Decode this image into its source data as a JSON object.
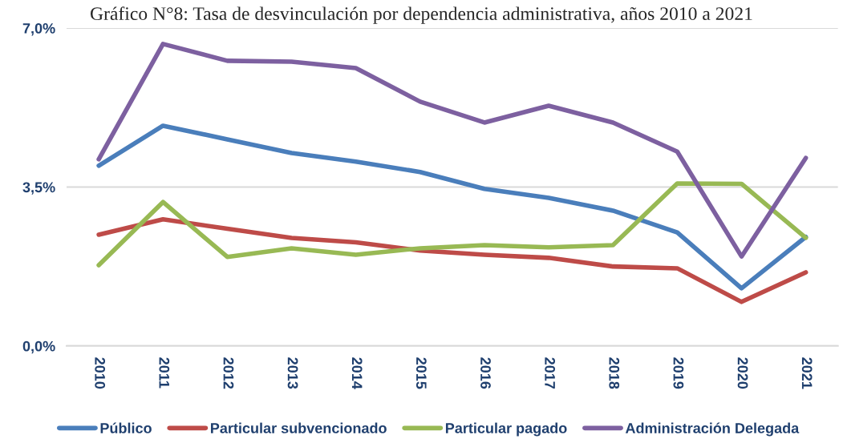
{
  "chart_data": {
    "type": "line",
    "title": "Gráfico N°8: Tasa de desvinculación por dependencia administrativa, años 2010 a 2021",
    "categories": [
      "2010",
      "2011",
      "2012",
      "2013",
      "2014",
      "2015",
      "2016",
      "2017",
      "2018",
      "2019",
      "2020",
      "2021"
    ],
    "series": [
      {
        "name": "Público",
        "color": "#4a7ebb",
        "values": [
          3.97,
          4.85,
          4.55,
          4.25,
          4.06,
          3.83,
          3.46,
          3.26,
          2.98,
          2.5,
          1.27,
          2.4
        ]
      },
      {
        "name": "Particular subvencionado",
        "color": "#be4b48",
        "values": [
          2.45,
          2.79,
          2.58,
          2.38,
          2.28,
          2.1,
          2.01,
          1.94,
          1.75,
          1.71,
          0.97,
          1.62
        ]
      },
      {
        "name": "Particular pagado",
        "color": "#98b954",
        "values": [
          1.78,
          3.17,
          1.96,
          2.15,
          2.01,
          2.15,
          2.22,
          2.17,
          2.22,
          3.58,
          3.57,
          2.38
        ]
      },
      {
        "name": "Administración Delegada",
        "color": "#7d60a0",
        "values": [
          4.11,
          6.65,
          6.28,
          6.26,
          6.12,
          5.38,
          4.92,
          5.29,
          4.92,
          4.28,
          1.97,
          4.14
        ]
      }
    ],
    "ylim": [
      0,
      7
    ],
    "yticks": [
      {
        "value": 0,
        "label": "0,0%"
      },
      {
        "value": 3.5,
        "label": "3,5%"
      },
      {
        "value": 7,
        "label": "7,0%"
      }
    ],
    "grid": "y",
    "legend": "bottom",
    "marker": "none",
    "line_style": "solid"
  }
}
